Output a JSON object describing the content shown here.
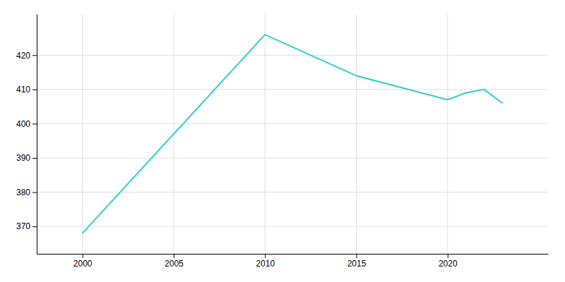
{
  "chart_data": {
    "type": "line",
    "x": [
      2000,
      2010,
      2015,
      2020,
      2021,
      2022,
      2023
    ],
    "values": [
      368,
      426,
      414,
      407,
      409,
      410,
      406
    ],
    "color": "#2ecece",
    "xlim": [
      1997.5,
      2025.5
    ],
    "xticks": [
      2000,
      2005,
      2010,
      2015,
      2020
    ],
    "ylim": [
      362,
      432
    ],
    "yticks": [
      370,
      380,
      390,
      400,
      410,
      420
    ],
    "grid": true
  }
}
